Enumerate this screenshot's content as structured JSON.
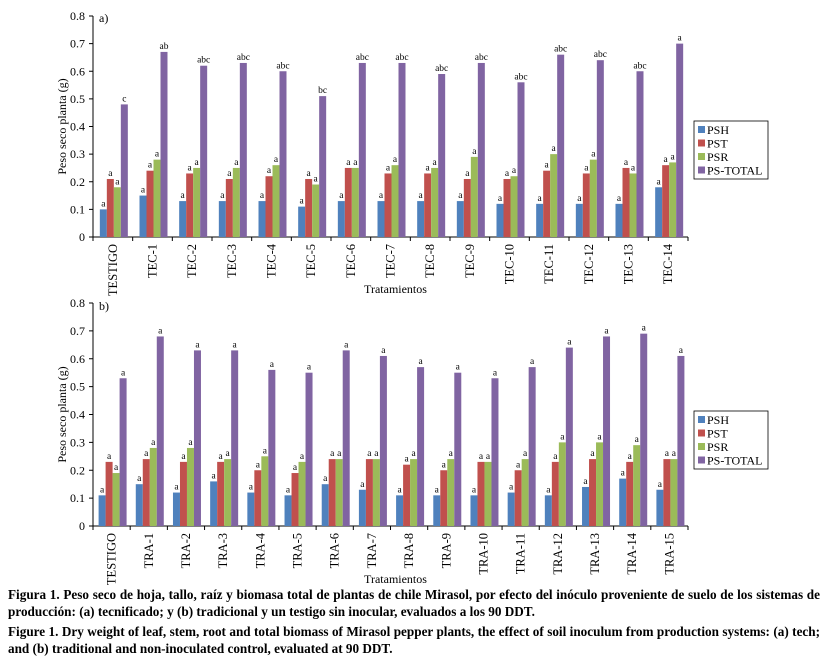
{
  "chart_data": [
    {
      "type": "bar",
      "panel_label": "a)",
      "ylabel": "Peso seco planta (g)",
      "xlabel": "Tratamientos",
      "ylim": [
        0,
        0.8
      ],
      "yticks": [
        "0",
        "0.1",
        "0.2",
        "0.3",
        "0.4",
        "0.5",
        "0.6",
        "0.7",
        "0.8"
      ],
      "categories": [
        "TESTIGO",
        "TEC-1",
        "TEC-2",
        "TEC-3",
        "TEC-4",
        "TEC-5",
        "TEC-6",
        "TEC-7",
        "TEC-8",
        "TEC-9",
        "TEC-10",
        "TEC-11",
        "TEC-12",
        "TEC-13",
        "TEC-14"
      ],
      "series": [
        {
          "name": "PSH",
          "color": "#4f81bd",
          "values": [
            0.1,
            0.15,
            0.13,
            0.13,
            0.13,
            0.11,
            0.13,
            0.13,
            0.13,
            0.13,
            0.12,
            0.12,
            0.12,
            0.12,
            0.18
          ],
          "labels": [
            "a",
            "a",
            "a",
            "a",
            "a",
            "a",
            "a",
            "a",
            "a",
            "a",
            "a",
            "a",
            "a",
            "a",
            "a"
          ]
        },
        {
          "name": "PST",
          "color": "#c0504d",
          "values": [
            0.21,
            0.24,
            0.23,
            0.21,
            0.22,
            0.21,
            0.25,
            0.23,
            0.23,
            0.21,
            0.21,
            0.24,
            0.23,
            0.25,
            0.26
          ],
          "labels": [
            "a",
            "a",
            "a",
            "a",
            "a",
            "a",
            "a",
            "a",
            "a",
            "a",
            "a",
            "a",
            "a",
            "a",
            "a"
          ]
        },
        {
          "name": "PSR",
          "color": "#9bbb59",
          "values": [
            0.18,
            0.28,
            0.25,
            0.25,
            0.26,
            0.19,
            0.25,
            0.26,
            0.25,
            0.29,
            0.22,
            0.3,
            0.28,
            0.23,
            0.27
          ],
          "labels": [
            "a",
            "a",
            "a",
            "a",
            "a",
            "a",
            "a",
            "a",
            "a",
            "a",
            "a",
            "a",
            "a",
            "a",
            "a"
          ]
        },
        {
          "name": "PS-TOTAL",
          "color": "#8064a2",
          "values": [
            0.48,
            0.67,
            0.62,
            0.63,
            0.6,
            0.51,
            0.63,
            0.63,
            0.59,
            0.63,
            0.56,
            0.66,
            0.64,
            0.6,
            0.7
          ],
          "labels": [
            "c",
            "ab",
            "abc",
            "abc",
            "abc",
            "bc",
            "abc",
            "abc",
            "abc",
            "abc",
            "abc",
            "abc",
            "abc",
            "abc",
            "a"
          ]
        }
      ],
      "legend": "right"
    },
    {
      "type": "bar",
      "panel_label": "b)",
      "ylabel": "Peso seco planta (g)",
      "xlabel": "Tratamientos",
      "ylim": [
        0,
        0.8
      ],
      "yticks": [
        "0",
        "0.1",
        "0.2",
        "0.3",
        "0.4",
        "0.5",
        "0.6",
        "0.7",
        "0.8"
      ],
      "categories": [
        "TESTIGO",
        "TRA-1",
        "TRA-2",
        "TRA-3",
        "TRA-4",
        "TRA-5",
        "TRA-6",
        "TRA-7",
        "TRA-8",
        "TRA-9",
        "TRA-10",
        "TRA-11",
        "TRA-12",
        "TRA-13",
        "TRA-14",
        "TRA-15"
      ],
      "series": [
        {
          "name": "PSH",
          "color": "#4f81bd",
          "values": [
            0.11,
            0.15,
            0.12,
            0.16,
            0.12,
            0.11,
            0.15,
            0.13,
            0.11,
            0.11,
            0.11,
            0.12,
            0.11,
            0.14,
            0.17,
            0.13
          ],
          "labels": [
            "a",
            "a",
            "a",
            "a",
            "a",
            "a",
            "a",
            "a",
            "a",
            "a",
            "a",
            "a",
            "a",
            "a",
            "a",
            "a"
          ]
        },
        {
          "name": "PST",
          "color": "#c0504d",
          "values": [
            0.23,
            0.24,
            0.23,
            0.23,
            0.2,
            0.19,
            0.24,
            0.24,
            0.22,
            0.2,
            0.23,
            0.2,
            0.23,
            0.24,
            0.23,
            0.24
          ],
          "labels": [
            "a",
            "a",
            "a",
            "a",
            "a",
            "a",
            "a",
            "a",
            "a",
            "a",
            "a",
            "a",
            "a",
            "a",
            "a",
            "a"
          ]
        },
        {
          "name": "PSR",
          "color": "#9bbb59",
          "values": [
            0.19,
            0.28,
            0.28,
            0.24,
            0.25,
            0.23,
            0.24,
            0.24,
            0.24,
            0.24,
            0.23,
            0.24,
            0.3,
            0.3,
            0.29,
            0.24
          ],
          "labels": [
            "a",
            "a",
            "a",
            "a",
            "a",
            "a",
            "a",
            "a",
            "a",
            "a",
            "a",
            "a",
            "a",
            "a",
            "a",
            "a"
          ]
        },
        {
          "name": "PS-TOTAL",
          "color": "#8064a2",
          "values": [
            0.53,
            0.68,
            0.63,
            0.63,
            0.56,
            0.55,
            0.63,
            0.61,
            0.57,
            0.55,
            0.53,
            0.57,
            0.64,
            0.68,
            0.69,
            0.61
          ],
          "labels": [
            "a",
            "a",
            "a",
            "a",
            "a",
            "a",
            "a",
            "a",
            "a",
            "a",
            "a",
            "a",
            "a",
            "a",
            "a",
            "a"
          ]
        }
      ],
      "legend": "right"
    }
  ],
  "caption": {
    "es": "Figura 1. Peso seco de hoja, tallo, raíz y biomasa total de plantas de chile Mirasol, por efecto del inóculo proveniente de suelo de los sistemas de producción: (a) tecnificado; y (b) tradicional y un testigo sin inocular, evaluados a los 90 DDT.",
    "en": "Figure 1. Dry weight of leaf, stem, root and total biomass of Mirasol pepper plants, the effect of soil inoculum from production systems: (a) tech; and (b) traditional and non-inoculated control, evaluated at 90 DDT."
  }
}
